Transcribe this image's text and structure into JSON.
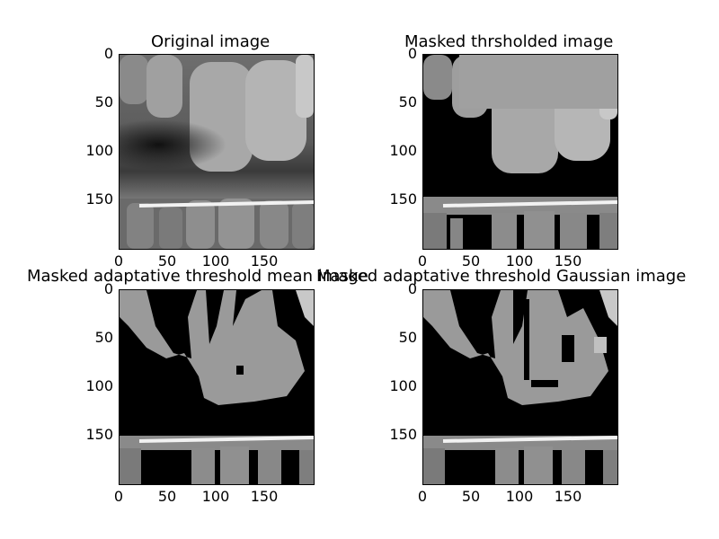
{
  "figure": {
    "panels": [
      {
        "id": "original",
        "title": "Original image"
      },
      {
        "id": "thresholded",
        "title": "Masked thrsholded image"
      },
      {
        "id": "adaptive-mean",
        "title": "Masked adaptative threshold mean image"
      },
      {
        "id": "adaptive-gaussian",
        "title": "Masked adaptative threshold Gaussian image"
      }
    ],
    "y_ticks": [
      "0",
      "50",
      "100",
      "150"
    ],
    "x_ticks": [
      "0",
      "50",
      "100",
      "150"
    ],
    "image_extent": [
      0,
      200
    ]
  }
}
